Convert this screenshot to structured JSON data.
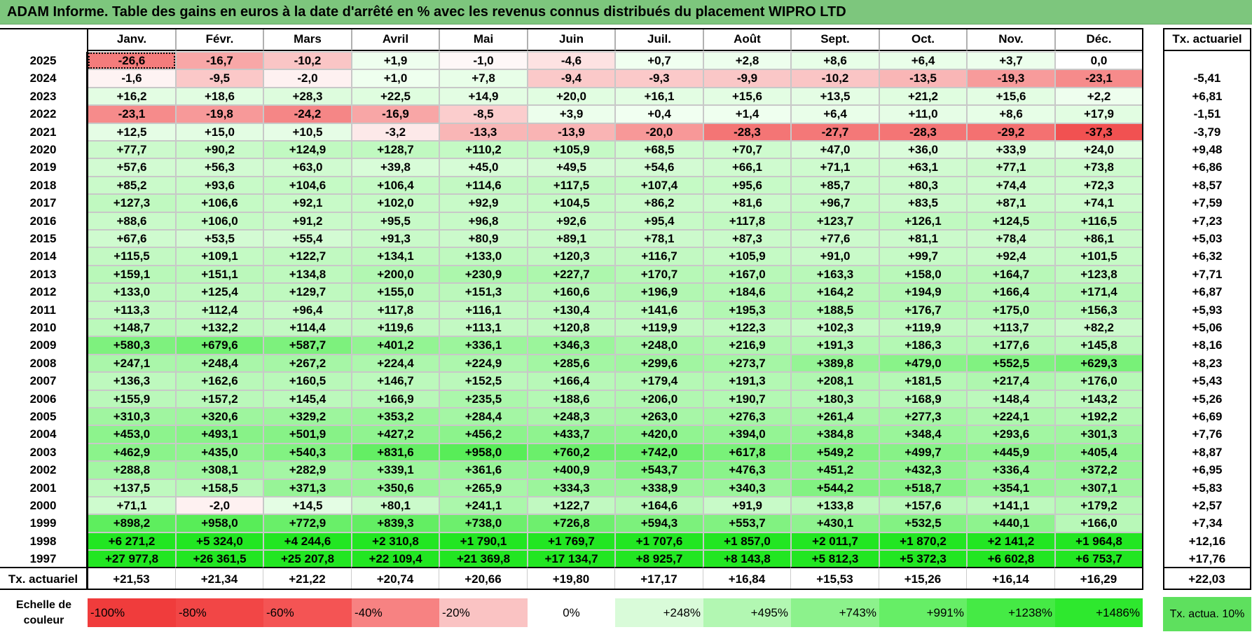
{
  "title": "ADAM Informe. Table des gains en euros à la date d'arrêté en % avec les revenus connus distribués du placement WIPRO LTD",
  "chart_data": {
    "type": "table",
    "title": "ADAM Informe. Table des gains en euros à la date d'arrêté en % avec les revenus connus distribués du placement WIPRO LTD",
    "columns": [
      "Janv.",
      "Févr.",
      "Mars",
      "Avril",
      "Mai",
      "Juin",
      "Juil.",
      "Août",
      "Sept.",
      "Oct.",
      "Nov.",
      "Déc."
    ],
    "ta_header": "Tx. actuariel",
    "rows": [
      {
        "year": "2025",
        "values": [
          "-26,6",
          "-16,7",
          "-10,2",
          "+1,9",
          "-1,0",
          "-4,6",
          "+0,7",
          "+2,8",
          "+8,6",
          "+6,4",
          "+3,7",
          "0,0"
        ],
        "num": [
          -26.6,
          -16.7,
          -10.2,
          1.9,
          -1.0,
          -4.6,
          0.7,
          2.8,
          8.6,
          6.4,
          3.7,
          0.0
        ],
        "ta": ""
      },
      {
        "year": "2024",
        "values": [
          "-1,6",
          "-9,5",
          "-2,0",
          "+1,0",
          "+7,8",
          "-9,4",
          "-9,3",
          "-9,9",
          "-10,2",
          "-13,5",
          "-19,3",
          "-23,1"
        ],
        "num": [
          -1.6,
          -9.5,
          -2.0,
          1.0,
          7.8,
          -9.4,
          -9.3,
          -9.9,
          -10.2,
          -13.5,
          -19.3,
          -23.1
        ],
        "ta": "-5,41"
      },
      {
        "year": "2023",
        "values": [
          "+16,2",
          "+18,6",
          "+28,3",
          "+22,5",
          "+14,9",
          "+20,0",
          "+16,1",
          "+15,6",
          "+13,5",
          "+21,2",
          "+15,6",
          "+2,2"
        ],
        "num": [
          16.2,
          18.6,
          28.3,
          22.5,
          14.9,
          20.0,
          16.1,
          15.6,
          13.5,
          21.2,
          15.6,
          2.2
        ],
        "ta": "+6,81"
      },
      {
        "year": "2022",
        "values": [
          "-23,1",
          "-19,8",
          "-24,2",
          "-16,9",
          "-8,5",
          "+3,9",
          "+0,4",
          "+1,4",
          "+6,4",
          "+11,0",
          "+8,6",
          "+17,9"
        ],
        "num": [
          -23.1,
          -19.8,
          -24.2,
          -16.9,
          -8.5,
          3.9,
          0.4,
          1.4,
          6.4,
          11.0,
          8.6,
          17.9
        ],
        "ta": "-1,51"
      },
      {
        "year": "2021",
        "values": [
          "+12,5",
          "+15,0",
          "+10,5",
          "-3,2",
          "-13,3",
          "-13,9",
          "-20,0",
          "-28,3",
          "-27,7",
          "-28,3",
          "-29,2",
          "-37,3"
        ],
        "num": [
          12.5,
          15.0,
          10.5,
          -3.2,
          -13.3,
          -13.9,
          -20.0,
          -28.3,
          -27.7,
          -28.3,
          -29.2,
          -37.3
        ],
        "ta": "-3,79"
      },
      {
        "year": "2020",
        "values": [
          "+77,7",
          "+90,2",
          "+124,9",
          "+128,7",
          "+110,2",
          "+105,9",
          "+68,5",
          "+70,7",
          "+47,0",
          "+36,0",
          "+33,9",
          "+24,0"
        ],
        "num": [
          77.7,
          90.2,
          124.9,
          128.7,
          110.2,
          105.9,
          68.5,
          70.7,
          47.0,
          36.0,
          33.9,
          24.0
        ],
        "ta": "+9,48"
      },
      {
        "year": "2019",
        "values": [
          "+57,6",
          "+56,3",
          "+63,0",
          "+39,8",
          "+45,0",
          "+49,5",
          "+54,6",
          "+66,1",
          "+71,1",
          "+63,1",
          "+77,1",
          "+73,8"
        ],
        "num": [
          57.6,
          56.3,
          63.0,
          39.8,
          45.0,
          49.5,
          54.6,
          66.1,
          71.1,
          63.1,
          77.1,
          73.8
        ],
        "ta": "+6,86"
      },
      {
        "year": "2018",
        "values": [
          "+85,2",
          "+93,6",
          "+104,6",
          "+106,4",
          "+114,6",
          "+117,5",
          "+107,4",
          "+95,6",
          "+85,7",
          "+80,3",
          "+74,4",
          "+72,3"
        ],
        "num": [
          85.2,
          93.6,
          104.6,
          106.4,
          114.6,
          117.5,
          107.4,
          95.6,
          85.7,
          80.3,
          74.4,
          72.3
        ],
        "ta": "+8,57"
      },
      {
        "year": "2017",
        "values": [
          "+127,3",
          "+106,6",
          "+92,1",
          "+102,0",
          "+92,9",
          "+104,5",
          "+86,2",
          "+81,6",
          "+96,7",
          "+83,5",
          "+87,1",
          "+74,1"
        ],
        "num": [
          127.3,
          106.6,
          92.1,
          102.0,
          92.9,
          104.5,
          86.2,
          81.6,
          96.7,
          83.5,
          87.1,
          74.1
        ],
        "ta": "+7,59"
      },
      {
        "year": "2016",
        "values": [
          "+88,6",
          "+106,0",
          "+91,2",
          "+95,5",
          "+96,8",
          "+92,6",
          "+95,4",
          "+117,8",
          "+123,7",
          "+126,1",
          "+124,5",
          "+116,5"
        ],
        "num": [
          88.6,
          106.0,
          91.2,
          95.5,
          96.8,
          92.6,
          95.4,
          117.8,
          123.7,
          126.1,
          124.5,
          116.5
        ],
        "ta": "+7,23"
      },
      {
        "year": "2015",
        "values": [
          "+67,6",
          "+53,5",
          "+55,4",
          "+91,3",
          "+80,9",
          "+89,1",
          "+78,1",
          "+87,3",
          "+77,6",
          "+81,1",
          "+78,4",
          "+86,1"
        ],
        "num": [
          67.6,
          53.5,
          55.4,
          91.3,
          80.9,
          89.1,
          78.1,
          87.3,
          77.6,
          81.1,
          78.4,
          86.1
        ],
        "ta": "+5,03"
      },
      {
        "year": "2014",
        "values": [
          "+115,5",
          "+109,1",
          "+122,7",
          "+134,1",
          "+133,0",
          "+120,3",
          "+116,7",
          "+105,9",
          "+91,0",
          "+99,7",
          "+92,4",
          "+101,5"
        ],
        "num": [
          115.5,
          109.1,
          122.7,
          134.1,
          133.0,
          120.3,
          116.7,
          105.9,
          91.0,
          99.7,
          92.4,
          101.5
        ],
        "ta": "+6,32"
      },
      {
        "year": "2013",
        "values": [
          "+159,1",
          "+151,1",
          "+134,8",
          "+200,0",
          "+230,9",
          "+227,7",
          "+170,7",
          "+167,0",
          "+163,3",
          "+158,0",
          "+164,7",
          "+123,8"
        ],
        "num": [
          159.1,
          151.1,
          134.8,
          200.0,
          230.9,
          227.7,
          170.7,
          167.0,
          163.3,
          158.0,
          164.7,
          123.8
        ],
        "ta": "+7,71"
      },
      {
        "year": "2012",
        "values": [
          "+133,0",
          "+125,4",
          "+129,7",
          "+155,0",
          "+151,3",
          "+160,6",
          "+196,9",
          "+184,6",
          "+164,2",
          "+194,9",
          "+166,4",
          "+171,4"
        ],
        "num": [
          133.0,
          125.4,
          129.7,
          155.0,
          151.3,
          160.6,
          196.9,
          184.6,
          164.2,
          194.9,
          166.4,
          171.4
        ],
        "ta": "+6,87"
      },
      {
        "year": "2011",
        "values": [
          "+113,3",
          "+112,4",
          "+96,4",
          "+117,8",
          "+116,1",
          "+130,4",
          "+141,6",
          "+195,3",
          "+188,5",
          "+176,7",
          "+175,0",
          "+156,3"
        ],
        "num": [
          113.3,
          112.4,
          96.4,
          117.8,
          116.1,
          130.4,
          141.6,
          195.3,
          188.5,
          176.7,
          175.0,
          156.3
        ],
        "ta": "+5,93"
      },
      {
        "year": "2010",
        "values": [
          "+148,7",
          "+132,2",
          "+114,4",
          "+119,6",
          "+113,1",
          "+120,8",
          "+119,9",
          "+122,3",
          "+102,3",
          "+119,9",
          "+113,7",
          "+82,2"
        ],
        "num": [
          148.7,
          132.2,
          114.4,
          119.6,
          113.1,
          120.8,
          119.9,
          122.3,
          102.3,
          119.9,
          113.7,
          82.2
        ],
        "ta": "+5,06"
      },
      {
        "year": "2009",
        "values": [
          "+580,3",
          "+679,6",
          "+587,7",
          "+401,2",
          "+336,1",
          "+346,3",
          "+248,0",
          "+216,9",
          "+191,3",
          "+186,3",
          "+177,6",
          "+145,8"
        ],
        "num": [
          580.3,
          679.6,
          587.7,
          401.2,
          336.1,
          346.3,
          248.0,
          216.9,
          191.3,
          186.3,
          177.6,
          145.8
        ],
        "ta": "+8,16"
      },
      {
        "year": "2008",
        "values": [
          "+247,1",
          "+248,4",
          "+267,2",
          "+224,4",
          "+224,9",
          "+285,6",
          "+299,6",
          "+273,7",
          "+389,8",
          "+479,0",
          "+552,5",
          "+629,3"
        ],
        "num": [
          247.1,
          248.4,
          267.2,
          224.4,
          224.9,
          285.6,
          299.6,
          273.7,
          389.8,
          479.0,
          552.5,
          629.3
        ],
        "ta": "+8,23"
      },
      {
        "year": "2007",
        "values": [
          "+136,3",
          "+162,6",
          "+160,5",
          "+146,7",
          "+152,5",
          "+166,4",
          "+179,4",
          "+191,3",
          "+208,1",
          "+181,5",
          "+217,4",
          "+176,0"
        ],
        "num": [
          136.3,
          162.6,
          160.5,
          146.7,
          152.5,
          166.4,
          179.4,
          191.3,
          208.1,
          181.5,
          217.4,
          176.0
        ],
        "ta": "+5,43"
      },
      {
        "year": "2006",
        "values": [
          "+155,9",
          "+157,2",
          "+145,4",
          "+166,9",
          "+235,5",
          "+188,6",
          "+206,0",
          "+190,7",
          "+180,3",
          "+168,9",
          "+148,4",
          "+143,2"
        ],
        "num": [
          155.9,
          157.2,
          145.4,
          166.9,
          235.5,
          188.6,
          206.0,
          190.7,
          180.3,
          168.9,
          148.4,
          143.2
        ],
        "ta": "+5,26"
      },
      {
        "year": "2005",
        "values": [
          "+310,3",
          "+320,6",
          "+329,2",
          "+353,2",
          "+284,4",
          "+248,3",
          "+263,0",
          "+276,3",
          "+261,4",
          "+277,3",
          "+224,1",
          "+192,2"
        ],
        "num": [
          310.3,
          320.6,
          329.2,
          353.2,
          284.4,
          248.3,
          263.0,
          276.3,
          261.4,
          277.3,
          224.1,
          192.2
        ],
        "ta": "+6,69"
      },
      {
        "year": "2004",
        "values": [
          "+453,0",
          "+493,1",
          "+501,9",
          "+427,2",
          "+456,2",
          "+433,7",
          "+420,0",
          "+394,0",
          "+384,8",
          "+348,4",
          "+293,6",
          "+301,3"
        ],
        "num": [
          453.0,
          493.1,
          501.9,
          427.2,
          456.2,
          433.7,
          420.0,
          394.0,
          384.8,
          348.4,
          293.6,
          301.3
        ],
        "ta": "+7,76"
      },
      {
        "year": "2003",
        "values": [
          "+462,9",
          "+435,0",
          "+540,3",
          "+831,6",
          "+958,0",
          "+760,2",
          "+742,0",
          "+617,8",
          "+549,2",
          "+499,7",
          "+445,9",
          "+405,4"
        ],
        "num": [
          462.9,
          435.0,
          540.3,
          831.6,
          958.0,
          760.2,
          742.0,
          617.8,
          549.2,
          499.7,
          445.9,
          405.4
        ],
        "ta": "+8,87"
      },
      {
        "year": "2002",
        "values": [
          "+288,8",
          "+308,1",
          "+282,9",
          "+339,1",
          "+361,6",
          "+400,9",
          "+543,7",
          "+476,3",
          "+451,2",
          "+432,3",
          "+336,4",
          "+372,2"
        ],
        "num": [
          288.8,
          308.1,
          282.9,
          339.1,
          361.6,
          400.9,
          543.7,
          476.3,
          451.2,
          432.3,
          336.4,
          372.2
        ],
        "ta": "+6,95"
      },
      {
        "year": "2001",
        "values": [
          "+137,5",
          "+158,5",
          "+371,3",
          "+350,6",
          "+265,9",
          "+334,3",
          "+338,9",
          "+340,3",
          "+544,2",
          "+518,7",
          "+354,1",
          "+307,1"
        ],
        "num": [
          137.5,
          158.5,
          371.3,
          350.6,
          265.9,
          334.3,
          338.9,
          340.3,
          544.2,
          518.7,
          354.1,
          307.1
        ],
        "ta": "+5,83"
      },
      {
        "year": "2000",
        "values": [
          "+71,1",
          "-2,0",
          "+14,5",
          "+80,1",
          "+241,1",
          "+122,7",
          "+164,6",
          "+91,9",
          "+133,8",
          "+157,6",
          "+141,1",
          "+179,2"
        ],
        "num": [
          71.1,
          -2.0,
          14.5,
          80.1,
          241.1,
          122.7,
          164.6,
          91.9,
          133.8,
          157.6,
          141.1,
          179.2
        ],
        "ta": "+2,57"
      },
      {
        "year": "1999",
        "values": [
          "+898,2",
          "+958,0",
          "+772,9",
          "+839,3",
          "+738,0",
          "+726,8",
          "+594,3",
          "+553,7",
          "+430,1",
          "+532,5",
          "+440,1",
          "+166,0"
        ],
        "num": [
          898.2,
          958.0,
          772.9,
          839.3,
          738.0,
          726.8,
          594.3,
          553.7,
          430.1,
          532.5,
          440.1,
          166.0
        ],
        "ta": "+7,34"
      },
      {
        "year": "1998",
        "values": [
          "+6 271,2",
          "+5 324,0",
          "+4 244,6",
          "+2 310,8",
          "+1 790,1",
          "+1 769,7",
          "+1 707,6",
          "+1 857,0",
          "+2 011,7",
          "+1 870,2",
          "+2 141,2",
          "+1 964,8"
        ],
        "num": [
          6271.2,
          5324.0,
          4244.6,
          2310.8,
          1790.1,
          1769.7,
          1707.6,
          1857.0,
          2011.7,
          1870.2,
          2141.2,
          1964.8
        ],
        "ta": "+12,16"
      },
      {
        "year": "1997",
        "values": [
          "+27 977,8",
          "+26 361,5",
          "+25 207,8",
          "+22 109,4",
          "+21 369,8",
          "+17 134,7",
          "+8 925,7",
          "+8 143,8",
          "+5 812,3",
          "+5 372,3",
          "+6 602,8",
          "+6 753,7"
        ],
        "num": [
          27977.8,
          26361.5,
          25207.8,
          22109.4,
          21369.8,
          17134.7,
          8925.7,
          8143.8,
          5812.3,
          5372.3,
          6602.8,
          6753.7
        ],
        "ta": "+17,76"
      }
    ],
    "tx_row": {
      "label": "Tx. actuariel",
      "values": [
        "+21,53",
        "+21,34",
        "+21,22",
        "+20,74",
        "+20,66",
        "+19,80",
        "+17,17",
        "+16,84",
        "+15,53",
        "+15,26",
        "+16,14",
        "+16,29"
      ],
      "total": "+22,03"
    },
    "scale": {
      "label": "Echelle de couleur",
      "items": [
        {
          "label": "-100%",
          "color": "#f03c3c"
        },
        {
          "label": "-80%",
          "color": "#f24646"
        },
        {
          "label": "-60%",
          "color": "#f45454"
        },
        {
          "label": "-40%",
          "color": "#f78282"
        },
        {
          "label": "-20%",
          "color": "#fac3c3"
        },
        {
          "label": "0%",
          "color": "#ffffff"
        },
        {
          "label": "+248%",
          "color": "#d9fbd9"
        },
        {
          "label": "+495%",
          "color": "#b2f7b2"
        },
        {
          "label": "+743%",
          "color": "#8cf28c"
        },
        {
          "label": "+991%",
          "color": "#66ee66"
        },
        {
          "label": "+1238%",
          "color": "#45ea45"
        },
        {
          "label": "+1486%",
          "color": "#2ee82e"
        }
      ],
      "tx_label": "Tx. actua. 10%",
      "tx_color": "#5ee05e"
    }
  }
}
